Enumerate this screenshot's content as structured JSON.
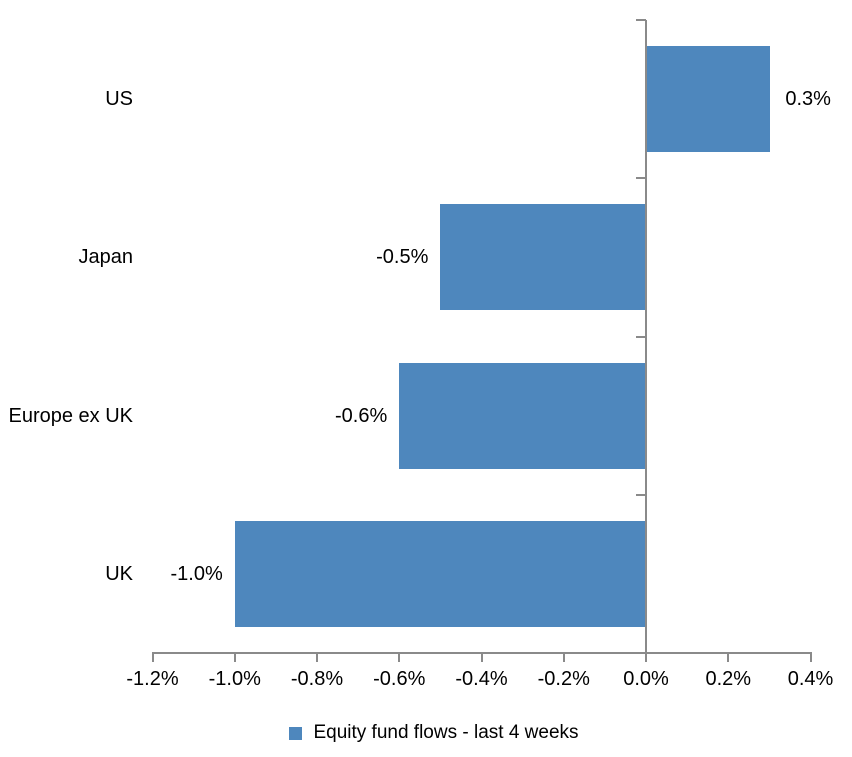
{
  "chart_data": {
    "type": "bar",
    "orientation": "horizontal",
    "title": "",
    "categories": [
      "US",
      "Japan",
      "Europe ex UK",
      "UK"
    ],
    "values": [
      0.3,
      -0.5,
      -0.6,
      -1.0
    ],
    "data_labels": [
      "0.3%",
      "-0.5%",
      "-0.6%",
      "-1.0%"
    ],
    "x_ticks": [
      -1.2,
      -1.0,
      -0.8,
      -0.6,
      -0.4,
      -0.2,
      0.0,
      0.2,
      0.4
    ],
    "x_tick_labels": [
      "-1.2%",
      "-1.0%",
      "-0.8%",
      "-0.6%",
      "-0.4%",
      "-0.2%",
      "0.0%",
      "0.2%",
      "0.4%"
    ],
    "xlim": [
      -1.2,
      0.4
    ],
    "grid": false,
    "legend_position": "bottom",
    "legend": [
      {
        "label": "Equity fund flows - last 4 weeks",
        "color": "#4e87bd"
      }
    ],
    "bar_color": "#4e87bd",
    "axis_color": "#8a8a8a",
    "text_color": "#000000",
    "background_color": "#ffffff"
  }
}
